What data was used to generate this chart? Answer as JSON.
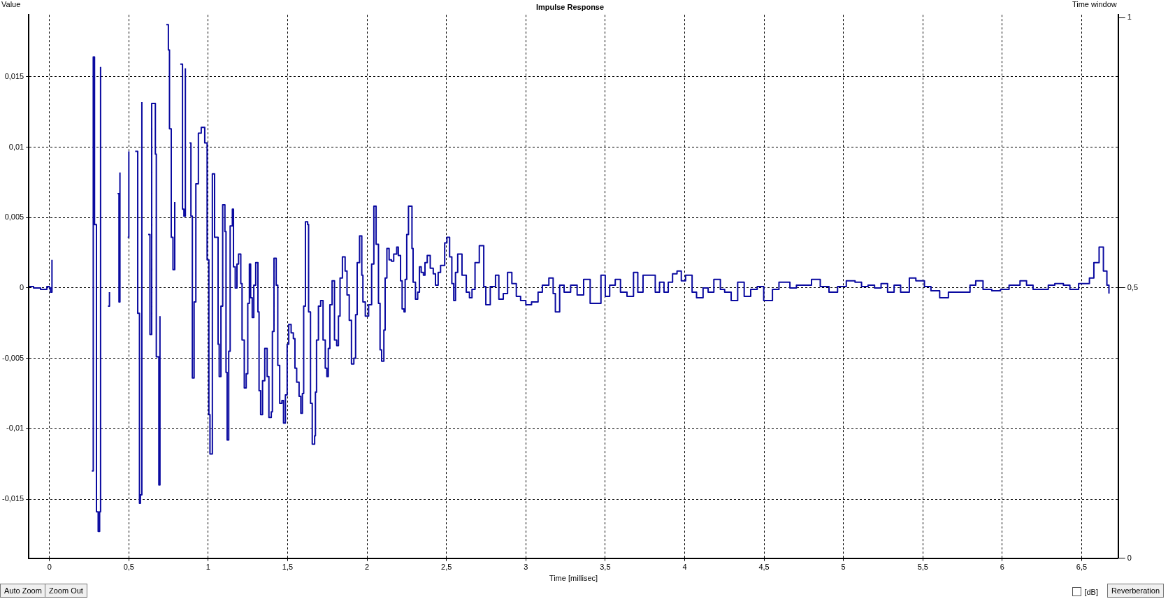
{
  "chart_data": {
    "type": "step",
    "title": "Impulse Response",
    "xlabel": "Time [millisec]",
    "ylabel": "Value",
    "y2label": "Time window",
    "x": [
      -0.127,
      -0.1,
      -0.056,
      -0.016,
      0,
      0.007,
      0.016,
      0.027,
      0.262,
      0.267,
      0.276,
      0.284,
      0.296,
      0.307,
      0.316,
      0.322,
      0.329,
      0.356,
      0.369,
      0.378,
      0.38,
      0.422,
      0.429,
      0.438,
      0.444,
      0.456,
      0.493,
      0.5,
      0.504,
      0.54,
      0.556,
      0.567,
      0.573,
      0.582,
      0.593,
      0.622,
      0.633,
      0.644,
      0.667,
      0.673,
      0.689,
      0.696,
      0.702,
      0.736,
      0.749,
      0.756,
      0.767,
      0.778,
      0.789,
      0.807,
      0.824,
      0.838,
      0.847,
      0.856,
      0.867,
      0.882,
      0.891,
      0.9,
      0.911,
      0.922,
      0.938,
      0.956,
      0.978,
      0.993,
      1.004,
      1.011,
      1.026,
      1.04,
      1.062,
      1.069,
      1.08,
      1.091,
      1.105,
      1.112,
      1.119,
      1.129,
      1.138,
      1.152,
      1.159,
      1.17,
      1.181,
      1.191,
      1.205,
      1.213,
      1.227,
      1.239,
      1.249,
      1.259,
      1.267,
      1.277,
      1.287,
      1.299,
      1.313,
      1.32,
      1.33,
      1.342,
      1.356,
      1.371,
      1.382,
      1.397,
      1.404,
      1.414,
      1.428,
      1.438,
      1.45,
      1.464,
      1.474,
      1.486,
      1.497,
      1.507,
      1.522,
      1.536,
      1.546,
      1.557,
      1.572,
      1.583,
      1.593,
      1.601,
      1.612,
      1.626,
      1.632,
      1.644,
      1.655,
      1.67,
      1.675,
      1.682,
      1.694,
      1.708,
      1.723,
      1.737,
      1.747,
      1.756,
      1.766,
      1.78,
      1.795,
      1.809,
      1.82,
      1.83,
      1.845,
      1.862,
      1.874,
      1.888,
      1.902,
      1.917,
      1.928,
      1.938,
      1.953,
      1.967,
      1.974,
      1.989,
      2.01,
      2.029,
      2.043,
      2.057,
      2.072,
      2.082,
      2.092,
      2.106,
      2.114,
      2.125,
      2.139,
      2.154,
      2.168,
      2.187,
      2.197,
      2.211,
      2.221,
      2.233,
      2.24,
      2.25,
      2.261,
      2.283,
      2.29,
      2.305,
      2.319,
      2.33,
      2.341,
      2.355,
      2.365,
      2.379,
      2.398,
      2.417,
      2.431,
      2.448,
      2.463,
      2.489,
      2.503,
      2.52,
      2.534,
      2.546,
      2.557,
      2.571,
      2.598,
      2.625,
      2.645,
      2.661,
      2.68,
      2.707,
      2.735,
      2.748,
      2.776,
      2.809,
      2.83,
      2.858,
      2.885,
      2.912,
      2.94,
      2.967,
      3,
      3.036,
      3.077,
      3.104,
      3.145,
      3.172,
      3.186,
      3.213,
      3.241,
      3.282,
      3.323,
      3.364,
      3.405,
      3.432,
      3.473,
      3.5,
      3.528,
      3.563,
      3.596,
      3.637,
      3.678,
      3.705,
      3.738,
      3.774,
      3.815,
      3.842,
      3.87,
      3.897,
      3.924,
      3.952,
      3.979,
      4.006,
      4.047,
      4.075,
      4.116,
      4.148,
      4.184,
      4.225,
      4.252,
      4.293,
      4.334,
      4.375,
      4.416,
      4.457,
      4.498,
      4.553,
      4.594,
      4.635,
      4.663,
      4.704,
      4.745,
      4.799,
      4.854,
      4.909,
      4.963,
      5.018,
      5.073,
      5.114,
      5.155,
      5.196,
      5.237,
      5.278,
      5.319,
      5.36,
      5.415,
      5.456,
      5.51,
      5.551,
      5.606,
      5.661,
      5.715,
      5.77,
      5.797,
      5.833,
      5.879,
      5.934,
      5.989,
      6.043,
      6.112,
      6.153,
      6.194,
      6.249,
      6.29,
      6.331,
      6.385,
      6.426,
      6.481,
      6.549,
      6.577,
      6.61,
      6.637,
      6.659,
      6.672
    ],
    "series": [
      {
        "color": "#0a0aa0",
        "values": [
          0.0001,
          0,
          -0.0001,
          0.0001,
          0,
          -0.0003,
          0.002,
          null,
          null,
          -0.013,
          0.0164,
          0.0045,
          -0.0159,
          -0.0173,
          -0.0159,
          0.0157,
          null,
          null,
          -0.0013,
          -0.0003,
          null,
          null,
          0.0067,
          -0.001,
          0.0082,
          null,
          0.0036,
          0.0097,
          null,
          0.0097,
          -0.0018,
          -0.0153,
          -0.0147,
          0.0132,
          null,
          0.0038,
          -0.0033,
          0.0131,
          0.0095,
          -0.0049,
          -0.014,
          -0.002,
          null,
          0.0187,
          0.0169,
          0.0113,
          0.0036,
          0.0013,
          0.0061,
          null,
          0.0159,
          0.0056,
          0.0051,
          0.0156,
          null,
          0.0103,
          0.0051,
          -0.0064,
          -0.001,
          0.0074,
          0.011,
          0.0114,
          0.0103,
          0.002,
          -0.009,
          -0.0118,
          0.0081,
          0.0036,
          -0.004,
          -0.0063,
          -0.0013,
          0.0059,
          0.004,
          -0.006,
          -0.0108,
          -0.0045,
          0.0044,
          0.0056,
          0.0015,
          0,
          0.0017,
          0.0024,
          0.0003,
          -0.0037,
          -0.0071,
          -0.0061,
          -0.0011,
          0.0017,
          -0.0007,
          -0.0021,
          0.0002,
          0.0018,
          -0.0017,
          -0.0073,
          -0.009,
          -0.0066,
          -0.0043,
          -0.0063,
          -0.0092,
          -0.0088,
          -0.0031,
          0.0021,
          0.0002,
          -0.0055,
          -0.0082,
          -0.008,
          -0.0096,
          -0.0076,
          -0.004,
          -0.0026,
          -0.0032,
          -0.0036,
          -0.0057,
          -0.0067,
          -0.0077,
          -0.0089,
          -0.0075,
          -0.0013,
          0.0047,
          0.0045,
          -0.0017,
          -0.0082,
          -0.0111,
          -0.0105,
          -0.0074,
          -0.0037,
          -0.0013,
          -0.0009,
          -0.0037,
          -0.0057,
          -0.0063,
          -0.0043,
          -0.0012,
          0.0005,
          -0.0037,
          -0.0041,
          -0.002,
          0.0007,
          0.0022,
          0.0012,
          -0.0005,
          -0.0023,
          -0.0054,
          -0.005,
          -0.0019,
          0.0018,
          0.0037,
          0.0009,
          -0.001,
          -0.002,
          -0.0012,
          0.0017,
          0.0058,
          0.0031,
          -0.0011,
          -0.0044,
          -0.0052,
          -0.003,
          0.0007,
          0.0028,
          0.002,
          0.0019,
          0.0024,
          0.0029,
          0.0023,
          0.0005,
          -0.0015,
          -0.0017,
          0.0006,
          0.0038,
          0.0058,
          0.0028,
          0.0004,
          -0.0008,
          -0.0003,
          0.0015,
          0.0011,
          0.0009,
          0.0018,
          0.0023,
          0.0014,
          0.001,
          0.0002,
          0.0011,
          0.0016,
          0.0032,
          0.0036,
          0.0022,
          0.0003,
          -0.0009,
          0.0011,
          0.0024,
          0.0009,
          -0.0003,
          -0.0007,
          -0.0001,
          0.0018,
          0.003,
          0.0001,
          -0.0012,
          0.0001,
          0.0009,
          -0.0008,
          -0.0004,
          0.0011,
          0.0003,
          -0.0006,
          -0.0009,
          -0.0012,
          -0.001,
          -0.0003,
          0.0002,
          0.0007,
          -0.0004,
          -0.0017,
          0.0002,
          -0.0003,
          0.0002,
          -0.0005,
          0.0006,
          -0.0011,
          -0.0011,
          0.0009,
          -0.0006,
          0.0002,
          0.0006,
          -0.0003,
          -0.0006,
          0.0011,
          -0.0003,
          0.0009,
          0.0009,
          -0.0003,
          0.0004,
          -0.0003,
          0.0004,
          0.001,
          0.0012,
          0.0005,
          0.0009,
          -0.0003,
          -0.0007,
          0,
          -0.0003,
          0.0006,
          -0.0001,
          -0.0003,
          -0.0009,
          0.0004,
          -0.0006,
          -0.0001,
          0.0001,
          -0.0009,
          -0.0001,
          0.0004,
          0.0004,
          0,
          0.0002,
          0.0002,
          0.0006,
          0.0001,
          -0.0003,
          0.0001,
          0.0005,
          0.0004,
          0.0001,
          0.0002,
          0,
          0.0003,
          -0.0003,
          0.0002,
          -0.0003,
          0.0007,
          0.0005,
          0.0001,
          -0.0002,
          -0.0007,
          -0.0003,
          -0.0003,
          -0.0003,
          0.0002,
          0.0005,
          -0.0001,
          -0.0002,
          -0.0001,
          0.0002,
          0.0005,
          0.0002,
          -0.0001,
          -0.0001,
          0.0002,
          0.0003,
          0.0002,
          -0.0001,
          0.0003,
          0.0007,
          0.0018,
          0.0029,
          0.0012,
          0.0002,
          -0.0004
        ]
      }
    ],
    "xlim": [
      -0.13,
      6.73
    ],
    "ylim": [
      -0.0192,
      0.0194
    ],
    "y2lim": [
      0,
      1.005
    ],
    "xticks": [
      0,
      {
        "value": 0.5,
        "label": "0,5"
      },
      1,
      {
        "value": 1.5,
        "label": "1,5"
      },
      2,
      {
        "value": 2.5,
        "label": "2,5"
      },
      3,
      {
        "value": 3.5,
        "label": "3,5"
      },
      4,
      {
        "value": 4.5,
        "label": "4,5"
      },
      5,
      {
        "value": 5.5,
        "label": "5,5"
      },
      6,
      {
        "value": 6.5,
        "label": "6,5"
      }
    ],
    "yticks": [
      {
        "value": -0.015,
        "label": "-0,015"
      },
      {
        "value": -0.01,
        "label": "-0,01"
      },
      {
        "value": -0.005,
        "label": "-0,005"
      },
      0,
      {
        "value": 0.005,
        "label": "0,005"
      },
      {
        "value": 0.01,
        "label": "0,01"
      },
      {
        "value": 0.015,
        "label": "0,015"
      }
    ],
    "y2ticks": [
      0,
      {
        "value": 0.5,
        "label": "0,5"
      },
      1
    ],
    "grid": true,
    "line_style": "solid",
    "marker": "none",
    "legend": false,
    "annotations": [
      "Auto Zoom",
      "Zoom Out",
      "[dB]",
      "Reverberation"
    ]
  }
}
